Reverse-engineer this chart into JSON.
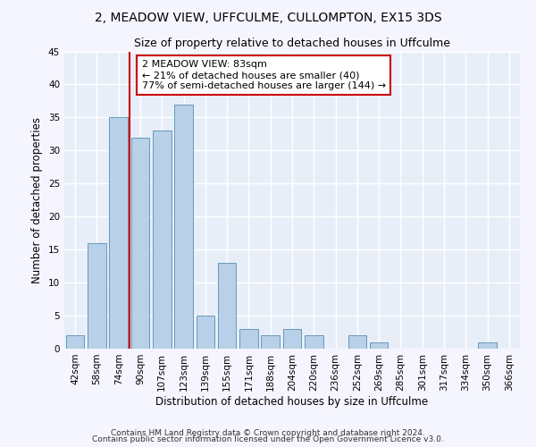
{
  "title1": "2, MEADOW VIEW, UFFCULME, CULLOMPTON, EX15 3DS",
  "title2": "Size of property relative to detached houses in Uffculme",
  "xlabel": "Distribution of detached houses by size in Uffculme",
  "ylabel": "Number of detached properties",
  "bins": [
    "42sqm",
    "58sqm",
    "74sqm",
    "90sqm",
    "107sqm",
    "123sqm",
    "139sqm",
    "155sqm",
    "171sqm",
    "188sqm",
    "204sqm",
    "220sqm",
    "236sqm",
    "252sqm",
    "269sqm",
    "285sqm",
    "301sqm",
    "317sqm",
    "334sqm",
    "350sqm",
    "366sqm"
  ],
  "values": [
    2,
    16,
    35,
    32,
    33,
    37,
    5,
    13,
    3,
    2,
    3,
    2,
    0,
    2,
    1,
    0,
    0,
    0,
    0,
    1,
    0
  ],
  "bar_color": "#b8d0e8",
  "bar_edge_color": "#6699bb",
  "vline_x_index": 2.5,
  "vline_color": "#cc0000",
  "annotation_text": "2 MEADOW VIEW: 83sqm\n← 21% of detached houses are smaller (40)\n77% of semi-detached houses are larger (144) →",
  "annotation_box_color": "#ffffff",
  "annotation_box_edge": "#cc0000",
  "ylim": [
    0,
    45
  ],
  "yticks": [
    0,
    5,
    10,
    15,
    20,
    25,
    30,
    35,
    40,
    45
  ],
  "footer1": "Contains HM Land Registry data © Crown copyright and database right 2024.",
  "footer2": "Contains public sector information licensed under the Open Government Licence v3.0.",
  "bg_color": "#e8eef8",
  "fig_color": "#f5f5ff",
  "grid_color": "#ffffff",
  "title1_fontsize": 10,
  "title2_fontsize": 9,
  "label_fontsize": 8.5,
  "tick_fontsize": 7.5,
  "footer_fontsize": 6.5,
  "annot_fontsize": 8
}
